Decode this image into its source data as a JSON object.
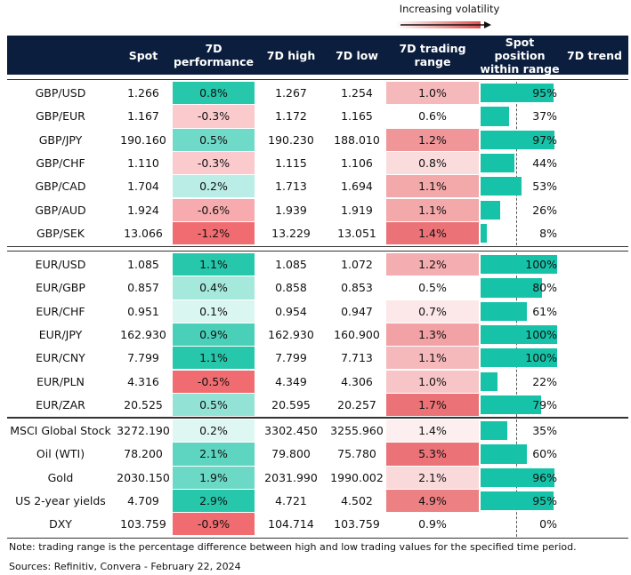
{
  "legend": {
    "label": "Increasing volatility"
  },
  "columns": [
    "Spot",
    "7D performance",
    "7D high",
    "7D low",
    "7D trading range",
    "Spot position within range",
    "7D trend"
  ],
  "groups": [
    {
      "rows": [
        {
          "name": "GBP/USD",
          "spot": "1.266",
          "perf": 0.8,
          "perf_label": "0.8%",
          "high": "1.267",
          "low": "1.254",
          "range": 1.0,
          "range_label": "1.0%",
          "position": 95,
          "position_label": "95%"
        },
        {
          "name": "GBP/EUR",
          "spot": "1.167",
          "perf": -0.3,
          "perf_label": "-0.3%",
          "high": "1.172",
          "low": "1.165",
          "range": 0.6,
          "range_label": "0.6%",
          "position": 37,
          "position_label": "37%"
        },
        {
          "name": "GBP/JPY",
          "spot": "190.160",
          "perf": 0.5,
          "perf_label": "0.5%",
          "high": "190.230",
          "low": "188.010",
          "range": 1.2,
          "range_label": "1.2%",
          "position": 97,
          "position_label": "97%"
        },
        {
          "name": "GBP/CHF",
          "spot": "1.110",
          "perf": -0.3,
          "perf_label": "-0.3%",
          "high": "1.115",
          "low": "1.106",
          "range": 0.8,
          "range_label": "0.8%",
          "position": 44,
          "position_label": "44%"
        },
        {
          "name": "GBP/CAD",
          "spot": "1.704",
          "perf": 0.2,
          "perf_label": "0.2%",
          "high": "1.713",
          "low": "1.694",
          "range": 1.1,
          "range_label": "1.1%",
          "position": 53,
          "position_label": "53%"
        },
        {
          "name": "GBP/AUD",
          "spot": "1.924",
          "perf": -0.6,
          "perf_label": "-0.6%",
          "high": "1.939",
          "low": "1.919",
          "range": 1.1,
          "range_label": "1.1%",
          "position": 26,
          "position_label": "26%"
        },
        {
          "name": "GBP/SEK",
          "spot": "13.066",
          "perf": -1.2,
          "perf_label": "-1.2%",
          "high": "13.229",
          "low": "13.051",
          "range": 1.4,
          "range_label": "1.4%",
          "position": 8,
          "position_label": "8%"
        }
      ]
    },
    {
      "rows": [
        {
          "name": "EUR/USD",
          "spot": "1.085",
          "perf": 1.1,
          "perf_label": "1.1%",
          "high": "1.085",
          "low": "1.072",
          "range": 1.2,
          "range_label": "1.2%",
          "position": 100,
          "position_label": "100%"
        },
        {
          "name": "EUR/GBP",
          "spot": "0.857",
          "perf": 0.4,
          "perf_label": "0.4%",
          "high": "0.858",
          "low": "0.853",
          "range": 0.5,
          "range_label": "0.5%",
          "position": 80,
          "position_label": "80%"
        },
        {
          "name": "EUR/CHF",
          "spot": "0.951",
          "perf": 0.1,
          "perf_label": "0.1%",
          "high": "0.954",
          "low": "0.947",
          "range": 0.7,
          "range_label": "0.7%",
          "position": 61,
          "position_label": "61%"
        },
        {
          "name": "EUR/JPY",
          "spot": "162.930",
          "perf": 0.9,
          "perf_label": "0.9%",
          "high": "162.930",
          "low": "160.900",
          "range": 1.3,
          "range_label": "1.3%",
          "position": 100,
          "position_label": "100%"
        },
        {
          "name": "EUR/CNY",
          "spot": "7.799",
          "perf": 1.1,
          "perf_label": "1.1%",
          "high": "7.799",
          "low": "7.713",
          "range": 1.1,
          "range_label": "1.1%",
          "position": 100,
          "position_label": "100%"
        },
        {
          "name": "EUR/PLN",
          "spot": "4.316",
          "perf": -0.5,
          "perf_label": "-0.5%",
          "high": "4.349",
          "low": "4.306",
          "range": 1.0,
          "range_label": "1.0%",
          "position": 22,
          "position_label": "22%"
        },
        {
          "name": "EUR/ZAR",
          "spot": "20.525",
          "perf": 0.5,
          "perf_label": "0.5%",
          "high": "20.595",
          "low": "20.257",
          "range": 1.7,
          "range_label": "1.7%",
          "position": 79,
          "position_label": "79%"
        }
      ]
    },
    {
      "rows": [
        {
          "name": "MSCI Global Stock",
          "spot": "3272.190",
          "perf": 0.2,
          "perf_label": "0.2%",
          "high": "3302.450",
          "low": "3255.960",
          "range": 1.4,
          "range_label": "1.4%",
          "position": 35,
          "position_label": "35%"
        },
        {
          "name": "Oil (WTI)",
          "spot": "78.200",
          "perf": 2.1,
          "perf_label": "2.1%",
          "high": "79.800",
          "low": "75.780",
          "range": 5.3,
          "range_label": "5.3%",
          "position": 60,
          "position_label": "60%"
        },
        {
          "name": "Gold",
          "spot": "2030.150",
          "perf": 1.9,
          "perf_label": "1.9%",
          "high": "2031.990",
          "low": "1990.002",
          "range": 2.1,
          "range_label": "2.1%",
          "position": 96,
          "position_label": "96%"
        },
        {
          "name": "US 2-year yields",
          "spot": "4.709",
          "perf": 2.9,
          "perf_label": "2.9%",
          "high": "4.721",
          "low": "4.502",
          "range": 4.9,
          "range_label": "4.9%",
          "position": 95,
          "position_label": "95%"
        },
        {
          "name": "DXY",
          "spot": "103.759",
          "perf": -0.9,
          "perf_label": "-0.9%",
          "high": "104.714",
          "low": "103.759",
          "range": 0.9,
          "range_label": "0.9%",
          "position": 0,
          "position_label": "0%"
        }
      ]
    }
  ],
  "notes": [
    "Note: trading range is the percentage difference between high and low trading values for the specified time period.",
    "Sources: Refinitiv, Convera - February 22, 2024"
  ]
}
